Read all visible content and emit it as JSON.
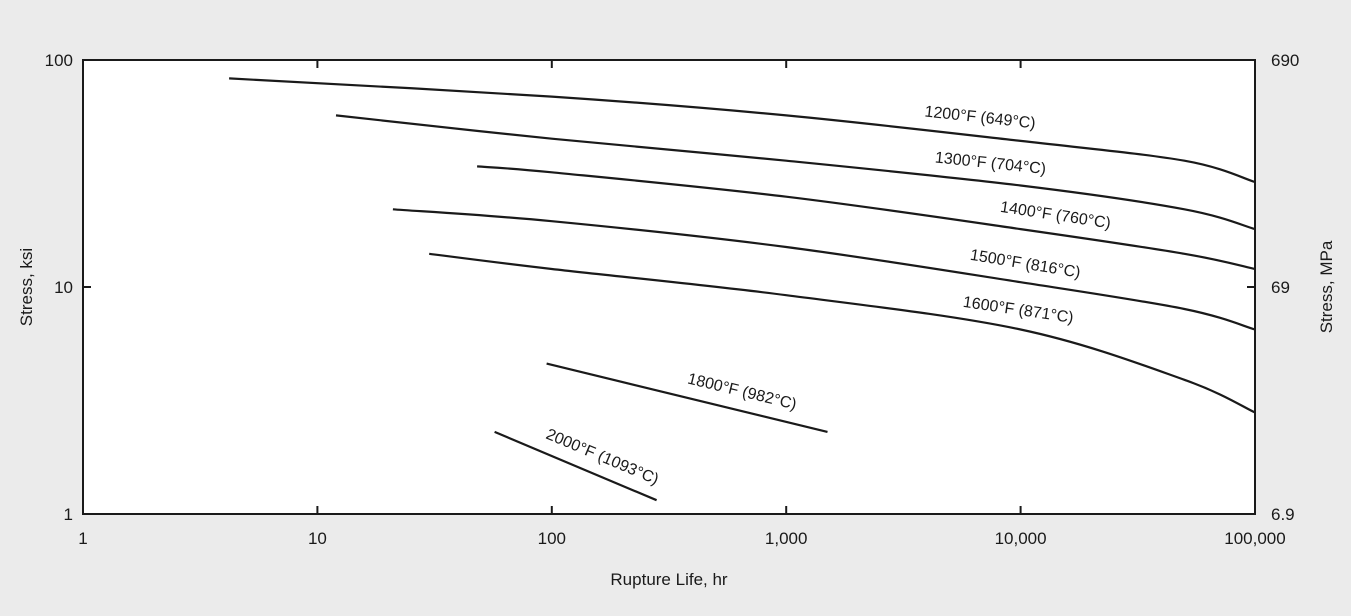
{
  "chart_data": {
    "type": "line",
    "title": "",
    "xlabel": "Rupture Life, hr",
    "ylabel": "Stress, ksi",
    "y2label": "Stress, MPa",
    "xscale": "log",
    "yscale": "log",
    "xlim": [
      1,
      100000
    ],
    "ylim": [
      1,
      100
    ],
    "x_ticks": [
      1,
      10,
      100,
      1000,
      10000,
      100000
    ],
    "x_tick_labels": [
      "1",
      "10",
      "100",
      "1,000",
      "10,000",
      "100,000"
    ],
    "y_ticks": [
      1,
      10,
      100
    ],
    "y_tick_labels": [
      "1",
      "10",
      "100"
    ],
    "y2_ticks": [
      1,
      10,
      100
    ],
    "y2_tick_labels": [
      "6.9",
      "69",
      "690"
    ],
    "grid": false,
    "legend": "none",
    "line_color": "#1a1a1a",
    "series": [
      {
        "name": "1200°F (649°C)",
        "x": [
          4.2,
          100,
          1000,
          10000,
          50000,
          100000
        ],
        "y": [
          83,
          69,
          57,
          44,
          36,
          29
        ]
      },
      {
        "name": "1300°F (704°C)",
        "x": [
          12,
          100,
          1000,
          10000,
          50000,
          100000
        ],
        "y": [
          57,
          45,
          36,
          28,
          22,
          18
        ]
      },
      {
        "name": "1400°F (760°C)",
        "x": [
          48,
          100,
          1000,
          10000,
          50000,
          100000
        ],
        "y": [
          34,
          32,
          25,
          18,
          14,
          12
        ]
      },
      {
        "name": "1500°F (816°C)",
        "x": [
          21,
          100,
          1000,
          10000,
          50000,
          100000
        ],
        "y": [
          22,
          19.5,
          15,
          10.5,
          8,
          6.5
        ]
      },
      {
        "name": "1600°F (871°C)",
        "x": [
          30,
          100,
          1000,
          10000,
          50000,
          100000
        ],
        "y": [
          14,
          12,
          9.2,
          6.5,
          3.9,
          2.8
        ]
      },
      {
        "name": "1800°F (982°C)",
        "x": [
          95,
          1500
        ],
        "y": [
          4.6,
          2.3
        ]
      },
      {
        "name": "2000°F (1093°C)",
        "x": [
          57,
          280
        ],
        "y": [
          2.3,
          1.15
        ]
      }
    ]
  }
}
